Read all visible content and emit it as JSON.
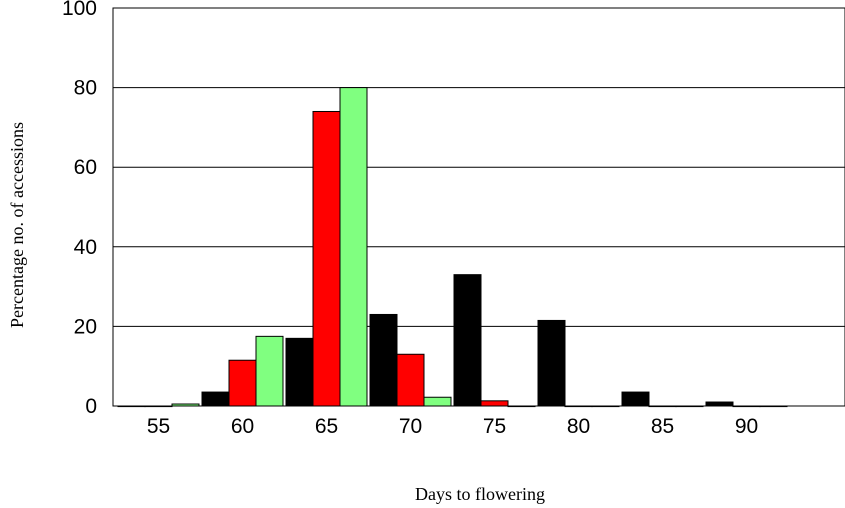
{
  "chart_data": {
    "type": "bar",
    "title": "",
    "xlabel": "Days to flowering",
    "ylabel": "Percentage no. of accessions",
    "ylim": [
      0,
      100
    ],
    "yticks": [
      "0",
      "20",
      "40",
      "60",
      "80",
      "100"
    ],
    "categories": [
      "55",
      "60",
      "65",
      "70",
      "75",
      "80",
      "85",
      "90"
    ],
    "grid": "horizontal",
    "series": [
      {
        "color": "#000000",
        "values": [
          0,
          3.5,
          17,
          23,
          33,
          21.5,
          3.5,
          1
        ]
      },
      {
        "color": "#ff0000",
        "values": [
          0,
          11.5,
          74,
          13,
          1.3,
          0,
          0,
          0
        ]
      },
      {
        "color": "#80ff80",
        "values": [
          0.5,
          17.5,
          80,
          2.2,
          0,
          0,
          0,
          0
        ]
      }
    ]
  }
}
